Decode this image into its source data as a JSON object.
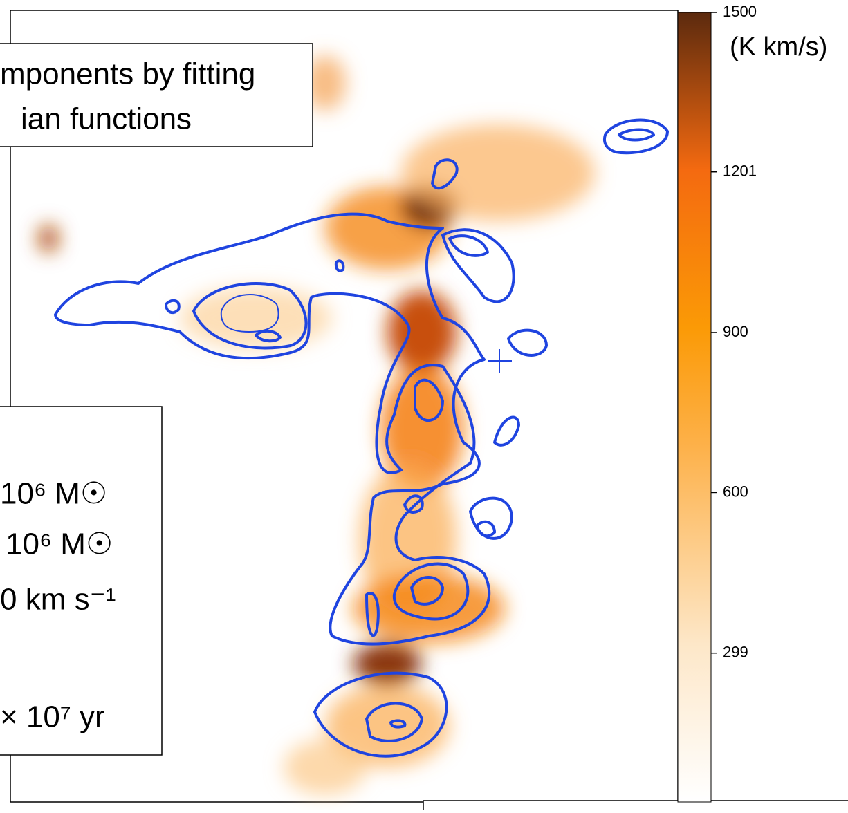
{
  "annotations": {
    "top_box": [
      "mponents by fitting",
      "ian functions"
    ],
    "left_box": [
      "10⁶ M☉",
      "10⁶ M☉",
      "0 km s⁻¹",
      "× 10⁷ yr"
    ]
  },
  "colorbar": {
    "label": "(K km/s)",
    "lim": [
      20,
      1500
    ],
    "ticks": [
      299,
      600,
      900,
      1201,
      1500
    ]
  }
}
